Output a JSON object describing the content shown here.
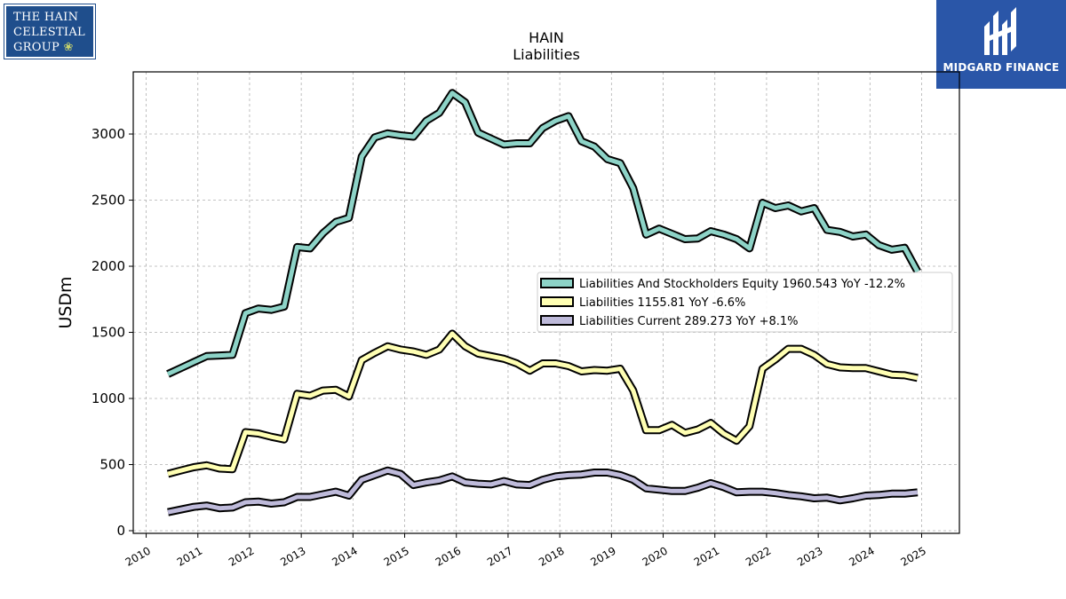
{
  "logos": {
    "left_lines": [
      "THE HAIN",
      "CELESTIAL",
      "GROUP"
    ],
    "right_brand": "MIDGARD FINANCE"
  },
  "chart_data": {
    "type": "line",
    "title": "HAIN",
    "subtitle": "Liabilities",
    "xlabel": "",
    "ylabel": "USDm",
    "xlim": [
      2009.75,
      2025.73
    ],
    "ylim": [
      -20,
      3470
    ],
    "x_ticks": [
      2010,
      2011,
      2012,
      2013,
      2014,
      2015,
      2016,
      2017,
      2018,
      2019,
      2020,
      2021,
      2022,
      2023,
      2024,
      2025
    ],
    "y_ticks": [
      0,
      500,
      1000,
      1500,
      2000,
      2500,
      3000
    ],
    "grid": true,
    "legend_position": "center-right",
    "series": [
      {
        "name": "Liabilities And Stockholders Equity",
        "legend": "Liabilities And Stockholders Equity  1960.543 YoY -12.2%",
        "color": "#8dd3c7",
        "points": [
          [
            2010.42,
            1185
          ],
          [
            2010.67,
            1230
          ],
          [
            2010.92,
            1275
          ],
          [
            2011.17,
            1320
          ],
          [
            2011.42,
            1325
          ],
          [
            2011.67,
            1330
          ],
          [
            2011.92,
            1645
          ],
          [
            2012.17,
            1680
          ],
          [
            2012.42,
            1670
          ],
          [
            2012.67,
            1695
          ],
          [
            2012.92,
            2145
          ],
          [
            2013.17,
            2135
          ],
          [
            2013.42,
            2250
          ],
          [
            2013.67,
            2335
          ],
          [
            2013.92,
            2365
          ],
          [
            2014.17,
            2830
          ],
          [
            2014.42,
            2975
          ],
          [
            2014.67,
            3005
          ],
          [
            2014.92,
            2990
          ],
          [
            2015.17,
            2980
          ],
          [
            2015.42,
            3100
          ],
          [
            2015.67,
            3160
          ],
          [
            2015.92,
            3310
          ],
          [
            2016.17,
            3240
          ],
          [
            2016.42,
            3010
          ],
          [
            2016.67,
            2965
          ],
          [
            2016.92,
            2920
          ],
          [
            2017.17,
            2930
          ],
          [
            2017.42,
            2930
          ],
          [
            2017.67,
            3045
          ],
          [
            2017.92,
            3100
          ],
          [
            2018.17,
            3135
          ],
          [
            2018.42,
            2945
          ],
          [
            2018.67,
            2905
          ],
          [
            2018.92,
            2810
          ],
          [
            2019.17,
            2780
          ],
          [
            2019.42,
            2590
          ],
          [
            2019.67,
            2240
          ],
          [
            2019.92,
            2285
          ],
          [
            2020.17,
            2245
          ],
          [
            2020.42,
            2205
          ],
          [
            2020.67,
            2210
          ],
          [
            2020.92,
            2265
          ],
          [
            2021.17,
            2240
          ],
          [
            2021.42,
            2205
          ],
          [
            2021.67,
            2135
          ],
          [
            2021.92,
            2480
          ],
          [
            2022.17,
            2440
          ],
          [
            2022.42,
            2460
          ],
          [
            2022.67,
            2415
          ],
          [
            2022.92,
            2440
          ],
          [
            2023.17,
            2275
          ],
          [
            2023.42,
            2260
          ],
          [
            2023.67,
            2225
          ],
          [
            2023.92,
            2240
          ],
          [
            2024.17,
            2160
          ],
          [
            2024.42,
            2125
          ],
          [
            2024.67,
            2140
          ],
          [
            2024.92,
            1960
          ]
        ]
      },
      {
        "name": "Liabilities",
        "legend": "Liabilities  1155.81 YoY -6.6%",
        "color": "#ffffb3",
        "points": [
          [
            2010.42,
            430
          ],
          [
            2010.67,
            455
          ],
          [
            2010.92,
            480
          ],
          [
            2011.17,
            495
          ],
          [
            2011.42,
            470
          ],
          [
            2011.67,
            465
          ],
          [
            2011.92,
            745
          ],
          [
            2012.17,
            735
          ],
          [
            2012.42,
            710
          ],
          [
            2012.67,
            690
          ],
          [
            2012.92,
            1035
          ],
          [
            2013.17,
            1020
          ],
          [
            2013.42,
            1060
          ],
          [
            2013.67,
            1065
          ],
          [
            2013.92,
            1015
          ],
          [
            2014.17,
            1290
          ],
          [
            2014.42,
            1345
          ],
          [
            2014.67,
            1395
          ],
          [
            2014.92,
            1370
          ],
          [
            2015.17,
            1355
          ],
          [
            2015.42,
            1330
          ],
          [
            2015.67,
            1370
          ],
          [
            2015.92,
            1490
          ],
          [
            2016.17,
            1395
          ],
          [
            2016.42,
            1340
          ],
          [
            2016.67,
            1320
          ],
          [
            2016.92,
            1300
          ],
          [
            2017.17,
            1265
          ],
          [
            2017.42,
            1210
          ],
          [
            2017.67,
            1265
          ],
          [
            2017.92,
            1265
          ],
          [
            2018.17,
            1245
          ],
          [
            2018.42,
            1205
          ],
          [
            2018.67,
            1215
          ],
          [
            2018.92,
            1210
          ],
          [
            2019.17,
            1225
          ],
          [
            2019.42,
            1060
          ],
          [
            2019.67,
            760
          ],
          [
            2019.92,
            760
          ],
          [
            2020.17,
            800
          ],
          [
            2020.42,
            740
          ],
          [
            2020.67,
            765
          ],
          [
            2020.92,
            815
          ],
          [
            2021.17,
            735
          ],
          [
            2021.42,
            680
          ],
          [
            2021.67,
            790
          ],
          [
            2021.92,
            1225
          ],
          [
            2022.17,
            1295
          ],
          [
            2022.42,
            1375
          ],
          [
            2022.67,
            1375
          ],
          [
            2022.92,
            1330
          ],
          [
            2023.17,
            1260
          ],
          [
            2023.42,
            1235
          ],
          [
            2023.67,
            1230
          ],
          [
            2023.92,
            1230
          ],
          [
            2024.17,
            1205
          ],
          [
            2024.42,
            1180
          ],
          [
            2024.67,
            1175
          ],
          [
            2024.92,
            1155
          ]
        ]
      },
      {
        "name": "Liabilities Current",
        "legend": "Liabilities Current  289.273 YoY +8.1%",
        "color": "#bebada",
        "points": [
          [
            2010.42,
            140
          ],
          [
            2010.67,
            160
          ],
          [
            2010.92,
            180
          ],
          [
            2011.17,
            190
          ],
          [
            2011.42,
            170
          ],
          [
            2011.67,
            175
          ],
          [
            2011.92,
            215
          ],
          [
            2012.17,
            220
          ],
          [
            2012.42,
            205
          ],
          [
            2012.67,
            215
          ],
          [
            2012.92,
            255
          ],
          [
            2013.17,
            255
          ],
          [
            2013.42,
            275
          ],
          [
            2013.67,
            295
          ],
          [
            2013.92,
            265
          ],
          [
            2014.17,
            385
          ],
          [
            2014.42,
            420
          ],
          [
            2014.67,
            455
          ],
          [
            2014.92,
            430
          ],
          [
            2015.17,
            345
          ],
          [
            2015.42,
            365
          ],
          [
            2015.67,
            380
          ],
          [
            2015.92,
            410
          ],
          [
            2016.17,
            365
          ],
          [
            2016.42,
            355
          ],
          [
            2016.67,
            350
          ],
          [
            2016.92,
            375
          ],
          [
            2017.17,
            350
          ],
          [
            2017.42,
            345
          ],
          [
            2017.67,
            385
          ],
          [
            2017.92,
            410
          ],
          [
            2018.17,
            420
          ],
          [
            2018.42,
            425
          ],
          [
            2018.67,
            440
          ],
          [
            2018.92,
            440
          ],
          [
            2019.17,
            420
          ],
          [
            2019.42,
            385
          ],
          [
            2019.67,
            320
          ],
          [
            2019.92,
            310
          ],
          [
            2020.17,
            300
          ],
          [
            2020.42,
            300
          ],
          [
            2020.67,
            325
          ],
          [
            2020.92,
            360
          ],
          [
            2021.17,
            330
          ],
          [
            2021.42,
            290
          ],
          [
            2021.67,
            295
          ],
          [
            2021.92,
            295
          ],
          [
            2022.17,
            285
          ],
          [
            2022.42,
            270
          ],
          [
            2022.67,
            260
          ],
          [
            2022.92,
            245
          ],
          [
            2023.17,
            250
          ],
          [
            2023.42,
            230
          ],
          [
            2023.67,
            245
          ],
          [
            2023.92,
            265
          ],
          [
            2024.17,
            270
          ],
          [
            2024.42,
            280
          ],
          [
            2024.67,
            280
          ],
          [
            2024.92,
            290
          ]
        ]
      }
    ]
  }
}
